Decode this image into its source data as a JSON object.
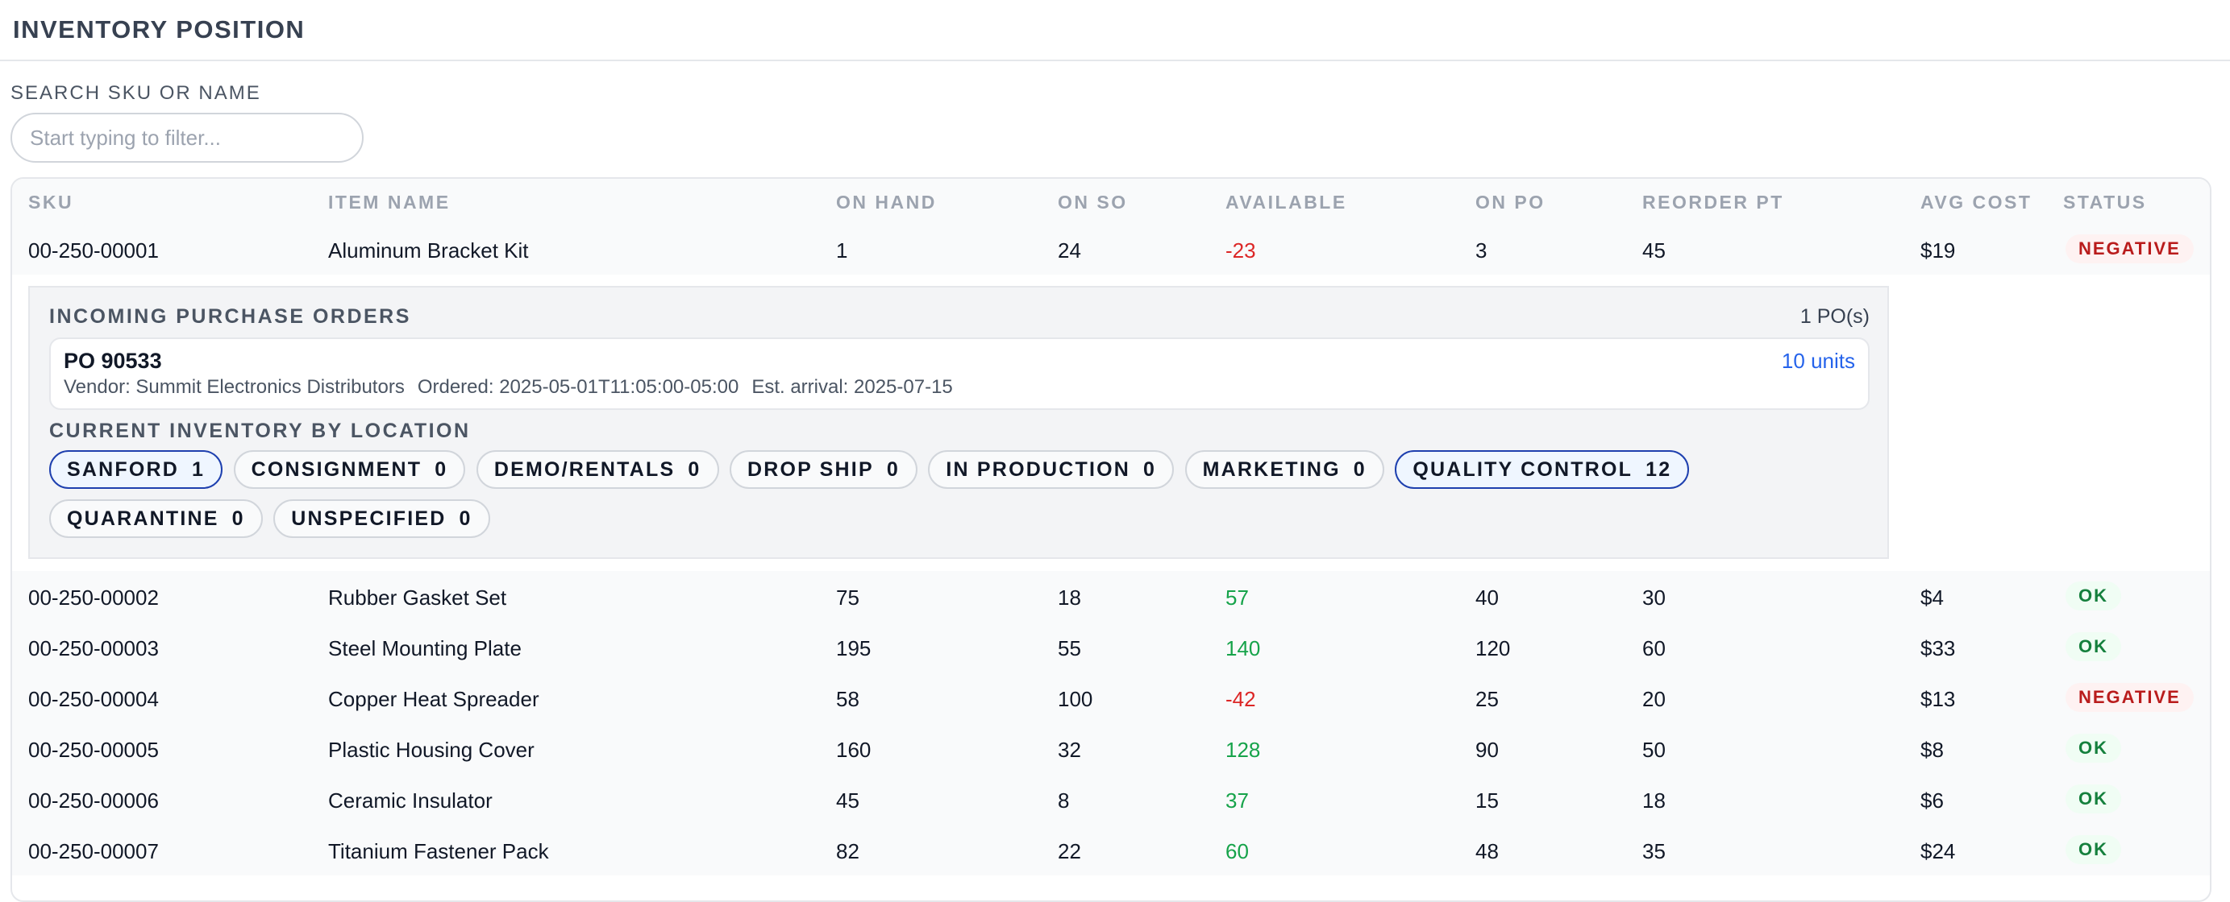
{
  "page": {
    "title": "INVENTORY POSITION"
  },
  "search": {
    "label": "SEARCH SKU OR NAME",
    "placeholder": "Start typing to filter..."
  },
  "table": {
    "headers": {
      "sku": "SKU",
      "name": "ITEM NAME",
      "on_hand": "ON HAND",
      "on_so": "ON SO",
      "available": "AVAILABLE",
      "on_po": "ON PO",
      "reorder_pt": "REORDER PT",
      "avg_cost": "AVG COST",
      "status": "STATUS"
    },
    "rows": [
      {
        "sku": "00-250-00001",
        "name": "Aluminum Bracket Kit",
        "on_hand": "1",
        "on_so": "24",
        "available": "-23",
        "on_po": "3",
        "reorder_pt": "45",
        "avg_cost": "$19",
        "status": "NEGATIVE"
      },
      {
        "sku": "00-250-00002",
        "name": "Rubber Gasket Set",
        "on_hand": "75",
        "on_so": "18",
        "available": "57",
        "on_po": "40",
        "reorder_pt": "30",
        "avg_cost": "$4",
        "status": "OK"
      },
      {
        "sku": "00-250-00003",
        "name": "Steel Mounting Plate",
        "on_hand": "195",
        "on_so": "55",
        "available": "140",
        "on_po": "120",
        "reorder_pt": "60",
        "avg_cost": "$33",
        "status": "OK"
      },
      {
        "sku": "00-250-00004",
        "name": "Copper Heat Spreader",
        "on_hand": "58",
        "on_so": "100",
        "available": "-42",
        "on_po": "25",
        "reorder_pt": "20",
        "avg_cost": "$13",
        "status": "NEGATIVE"
      },
      {
        "sku": "00-250-00005",
        "name": "Plastic Housing Cover",
        "on_hand": "160",
        "on_so": "32",
        "available": "128",
        "on_po": "90",
        "reorder_pt": "50",
        "avg_cost": "$8",
        "status": "OK"
      },
      {
        "sku": "00-250-00006",
        "name": "Ceramic Insulator",
        "on_hand": "45",
        "on_so": "8",
        "available": "37",
        "on_po": "15",
        "reorder_pt": "18",
        "avg_cost": "$6",
        "status": "OK"
      },
      {
        "sku": "00-250-00007",
        "name": "Titanium Fastener Pack",
        "on_hand": "82",
        "on_so": "22",
        "available": "60",
        "on_po": "48",
        "reorder_pt": "35",
        "avg_cost": "$24",
        "status": "OK"
      }
    ]
  },
  "detail": {
    "po_section_title": "INCOMING PURCHASE ORDERS",
    "po_count": "1 PO(s)",
    "po": {
      "number": "PO 90533",
      "vendor": "Vendor: Summit Electronics Distributors",
      "ordered": "Ordered: 2025-05-01T11:05:00-05:00",
      "eta": "Est. arrival: 2025-07-15",
      "units": "10 units"
    },
    "location_section_title": "CURRENT INVENTORY BY LOCATION",
    "locations": [
      {
        "name": "SANFORD",
        "qty": "1",
        "active": true
      },
      {
        "name": "CONSIGNMENT",
        "qty": "0",
        "active": false
      },
      {
        "name": "DEMO/RENTALS",
        "qty": "0",
        "active": false
      },
      {
        "name": "DROP SHIP",
        "qty": "0",
        "active": false
      },
      {
        "name": "IN PRODUCTION",
        "qty": "0",
        "active": false
      },
      {
        "name": "MARKETING",
        "qty": "0",
        "active": false
      },
      {
        "name": "QUALITY CONTROL",
        "qty": "12",
        "active": true
      },
      {
        "name": "QUARANTINE",
        "qty": "0",
        "active": false
      },
      {
        "name": "UNSPECIFIED",
        "qty": "0",
        "active": false
      }
    ]
  },
  "colors": {
    "negative": "#dc2626",
    "positive": "#16a34a",
    "link": "#2563eb",
    "chip_active_border": "#1e40af"
  }
}
